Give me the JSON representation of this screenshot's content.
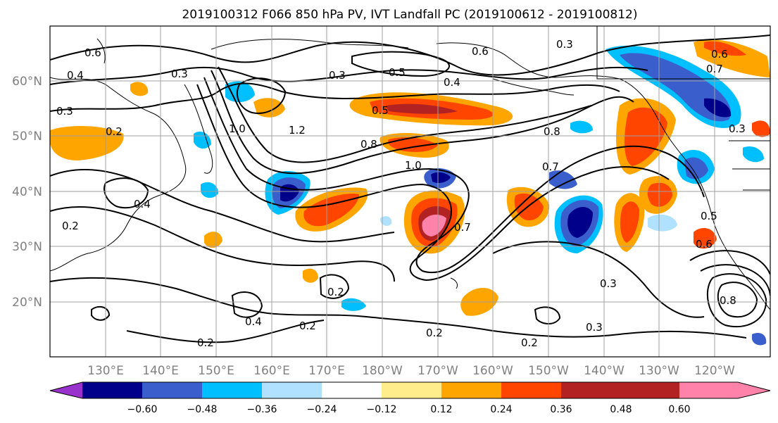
{
  "title": "2019100312 F066 850 hPa PV, IVT Landfall PC (2019100612 - 2019100812)",
  "lat_labels": [
    "60°N",
    "50°N",
    "40°N",
    "30°N",
    "20°N"
  ],
  "lon_labels": [
    "130°E",
    "140°E",
    "150°E",
    "160°E",
    "170°E",
    "180°W",
    "170°W",
    "160°W",
    "150°W",
    "140°W",
    "130°W",
    "120°W"
  ],
  "colorbar": {
    "ticks": [
      "−0.60",
      "−0.48",
      "−0.36",
      "−0.24",
      "−0.12",
      "0.12",
      "0.24",
      "0.36",
      "0.48",
      "0.60"
    ],
    "colors": [
      "#9932cc",
      "#00008b",
      "#3a5fcd",
      "#00bfff",
      "#b0e2ff",
      "#ffffff",
      "#ffec8b",
      "#ffa500",
      "#ff4500",
      "#b22222",
      "#ff82ab"
    ]
  },
  "contour_labels": [
    "0.6",
    "0.4",
    "0.3",
    "0.2",
    "0.3",
    "0.6",
    "0.5",
    "0.4",
    "0.5",
    "0.3",
    "0.3",
    "0.6",
    "0.7",
    "0.3",
    "1.0",
    "1.2",
    "0.8",
    "1.0",
    "0.8",
    "0.7",
    "0.4",
    "0.2",
    "0.2",
    "0.4",
    "0.2",
    "0.2",
    "0.2",
    "0.3",
    "0.3",
    "0.5",
    "0.6",
    "0.8",
    "0.2",
    "0.7"
  ]
}
